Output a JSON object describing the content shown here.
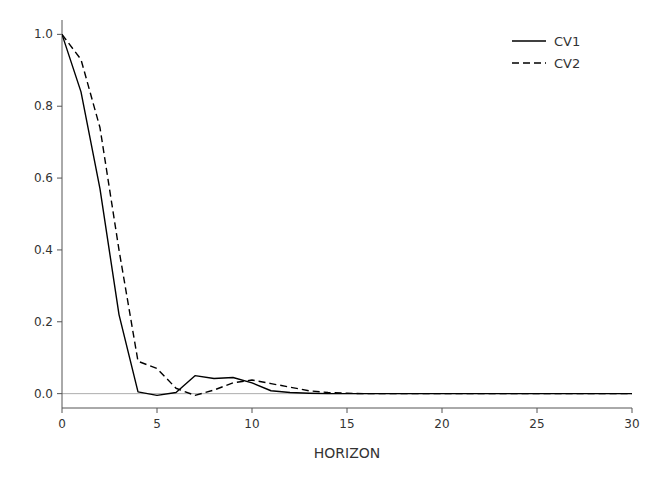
{
  "chart_data": {
    "type": "line",
    "x_label": "HORIZON",
    "x": [
      0,
      1,
      2,
      3,
      4,
      5,
      6,
      7,
      8,
      9,
      10,
      11,
      12,
      13,
      14,
      15,
      16,
      17,
      18,
      19,
      20,
      21,
      22,
      23,
      24,
      25,
      26,
      27,
      28,
      29,
      30
    ],
    "series": [
      {
        "name": "CV1",
        "color": "#000000",
        "line_style": "solid",
        "values": [
          1.0,
          0.84,
          0.57,
          0.22,
          0.005,
          -0.005,
          0.003,
          0.05,
          0.042,
          0.045,
          0.03,
          0.008,
          0.003,
          0.001,
          0.0,
          0.0,
          0.0,
          0.0,
          0.0,
          0.0,
          0.0,
          0.0,
          0.0,
          0.0,
          0.0,
          0.0,
          0.0,
          0.0,
          0.0,
          0.0,
          0.0
        ]
      },
      {
        "name": "CV2",
        "color": "#000000",
        "line_style": "dashed",
        "values": [
          1.0,
          0.93,
          0.74,
          0.4,
          0.09,
          0.07,
          0.015,
          -0.005,
          0.01,
          0.03,
          0.038,
          0.028,
          0.018,
          0.008,
          0.003,
          0.001,
          0.0,
          0.0,
          0.0,
          0.0,
          0.0,
          0.0,
          0.0,
          0.0,
          0.0,
          0.0,
          0.0,
          0.0,
          0.0,
          0.0,
          0.0
        ]
      }
    ],
    "xlim": [
      0,
      30
    ],
    "ylim": [
      -0.04,
      1.04
    ],
    "xticks": [
      0,
      5,
      10,
      15,
      20,
      25,
      30
    ],
    "yticks": [
      {
        "value": 0,
        "label": "0.0"
      },
      0.2,
      0.4,
      0.6,
      0.8,
      {
        "value": 1,
        "label": "1.0"
      }
    ],
    "grid": false,
    "legend": "upper right"
  }
}
